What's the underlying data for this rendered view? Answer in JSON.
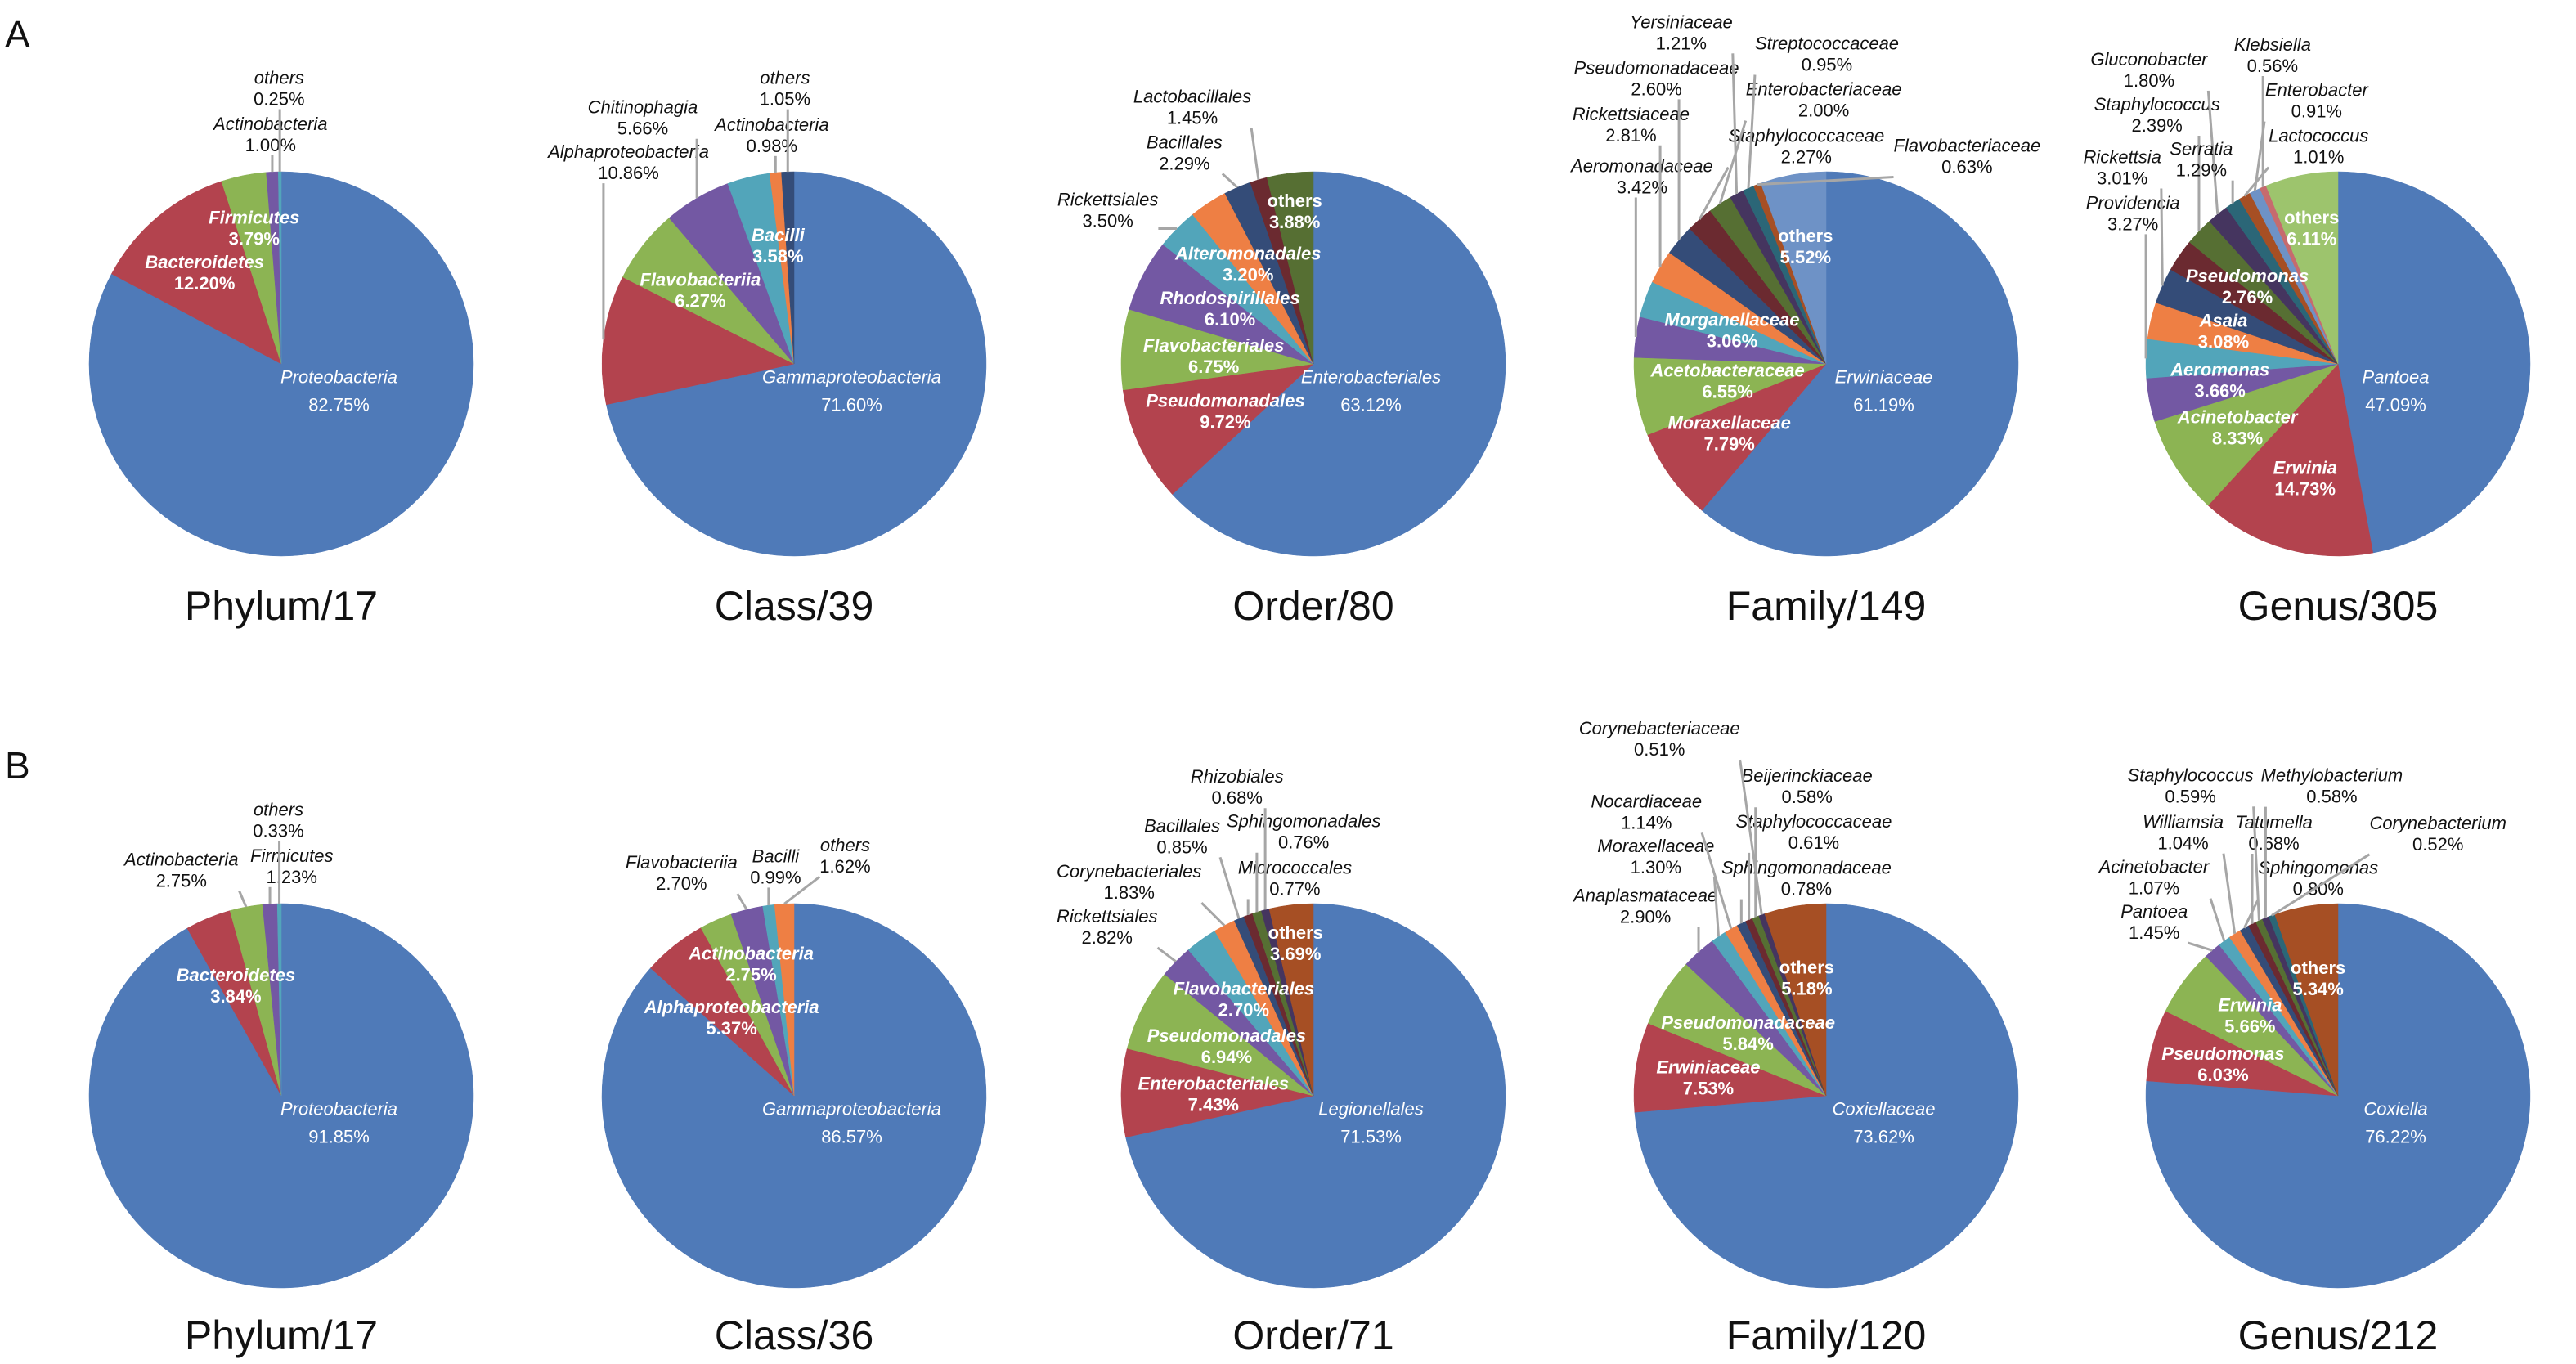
{
  "panels": [
    {
      "label": "A"
    },
    {
      "label": "B"
    }
  ],
  "palette": [
    "#4F7AB8",
    "#B3434E",
    "#8CB453",
    "#7358A3",
    "#52A5BA",
    "#EE7F44",
    "#344C78",
    "#6B2A30",
    "#566F33",
    "#45355F",
    "#2B6677",
    "#A64F24",
    "#6E92C6",
    "#C66B6E",
    "#9DC46D"
  ],
  "chart_data": [
    {
      "type": "pie",
      "panel": "A",
      "title": "Phylum/17",
      "slices": [
        {
          "label": "Proteobacteria",
          "value": 82.75
        },
        {
          "label": "Bacteroidetes",
          "value": 12.2
        },
        {
          "label": "Firmicutes",
          "value": 3.79
        },
        {
          "label": "Actinobacteria",
          "value": 1.0
        },
        {
          "label": "others",
          "value": 0.25
        }
      ]
    },
    {
      "type": "pie",
      "panel": "A",
      "title": "Class/39",
      "slices": [
        {
          "label": "Gammaproteobacteria",
          "value": 71.6
        },
        {
          "label": "Alphaproteobacteria",
          "value": 10.86
        },
        {
          "label": "Flavobacteriia",
          "value": 6.27
        },
        {
          "label": "Chitinophagia",
          "value": 5.66
        },
        {
          "label": "Bacilli",
          "value": 3.58
        },
        {
          "label": "Actinobacteria",
          "value": 0.98
        },
        {
          "label": "others",
          "value": 1.05
        }
      ]
    },
    {
      "type": "pie",
      "panel": "A",
      "title": "Order/80",
      "slices": [
        {
          "label": "Enterobacteriales",
          "value": 63.12
        },
        {
          "label": "Pseudomonadales",
          "value": 9.72
        },
        {
          "label": "Flavobacteriales",
          "value": 6.75
        },
        {
          "label": "Rhodospirillales",
          "value": 6.1
        },
        {
          "label": "Rickettsiales",
          "value": 3.5
        },
        {
          "label": "Alteromonadales",
          "value": 3.2
        },
        {
          "label": "Bacillales",
          "value": 2.29
        },
        {
          "label": "Lactobacillales",
          "value": 1.45
        },
        {
          "label": "others",
          "value": 3.88
        }
      ]
    },
    {
      "type": "pie",
      "panel": "A",
      "title": "Family/149",
      "slices": [
        {
          "label": "Erwiniaceae",
          "value": 61.19
        },
        {
          "label": "Moraxellaceae",
          "value": 7.79
        },
        {
          "label": "Acetobacteraceae",
          "value": 6.55
        },
        {
          "label": "Aeromonadaceae",
          "value": 3.42
        },
        {
          "label": "Morganellaceae",
          "value": 3.06
        },
        {
          "label": "Rickettsiaceae",
          "value": 2.81
        },
        {
          "label": "Pseudomonadaceae",
          "value": 2.6
        },
        {
          "label": "Staphylococcaceae",
          "value": 2.27
        },
        {
          "label": "Enterobacteriaceae",
          "value": 2.0
        },
        {
          "label": "Yersiniaceae",
          "value": 1.21
        },
        {
          "label": "Streptococcaceae",
          "value": 0.95
        },
        {
          "label": "Flavobacteriaceae",
          "value": 0.63
        },
        {
          "label": "others",
          "value": 5.52
        }
      ]
    },
    {
      "type": "pie",
      "panel": "A",
      "title": "Genus/305",
      "slices": [
        {
          "label": "Pantoea",
          "value": 47.09
        },
        {
          "label": "Erwinia",
          "value": 14.73
        },
        {
          "label": "Acinetobacter",
          "value": 8.33
        },
        {
          "label": "Aeromonas",
          "value": 3.66
        },
        {
          "label": "Providencia",
          "value": 3.27
        },
        {
          "label": "Asaia",
          "value": 3.08
        },
        {
          "label": "Rickettsia",
          "value": 3.01
        },
        {
          "label": "Pseudomonas",
          "value": 2.76
        },
        {
          "label": "Staphylococcus",
          "value": 2.39
        },
        {
          "label": "Gluconobacter",
          "value": 1.8
        },
        {
          "label": "Serratia",
          "value": 1.29
        },
        {
          "label": "Lactococcus",
          "value": 1.01
        },
        {
          "label": "Enterobacter",
          "value": 0.91
        },
        {
          "label": "Klebsiella",
          "value": 0.56
        },
        {
          "label": "others",
          "value": 6.11
        }
      ]
    },
    {
      "type": "pie",
      "panel": "B",
      "title": "Phylum/17",
      "slices": [
        {
          "label": "Proteobacteria",
          "value": 91.85
        },
        {
          "label": "Bacteroidetes",
          "value": 3.84
        },
        {
          "label": "Actinobacteria",
          "value": 2.75
        },
        {
          "label": "Firmicutes",
          "value": 1.23
        },
        {
          "label": "others",
          "value": 0.33
        }
      ]
    },
    {
      "type": "pie",
      "panel": "B",
      "title": "Class/36",
      "slices": [
        {
          "label": "Gammaproteobacteria",
          "value": 86.57
        },
        {
          "label": "Alphaproteobacteria",
          "value": 5.37
        },
        {
          "label": "Actinobacteria",
          "value": 2.75
        },
        {
          "label": "Flavobacteriia",
          "value": 2.7
        },
        {
          "label": "Bacilli",
          "value": 0.99
        },
        {
          "label": "others",
          "value": 1.62
        }
      ]
    },
    {
      "type": "pie",
      "panel": "B",
      "title": "Order/71",
      "slices": [
        {
          "label": "Legionellales",
          "value": 71.53
        },
        {
          "label": "Enterobacteriales",
          "value": 7.43
        },
        {
          "label": "Pseudomonadales",
          "value": 6.94
        },
        {
          "label": "Rickettsiales",
          "value": 2.82
        },
        {
          "label": "Flavobacteriales",
          "value": 2.7
        },
        {
          "label": "Corynebacteriales",
          "value": 1.83
        },
        {
          "label": "Bacillales",
          "value": 0.85
        },
        {
          "label": "Micrococcales",
          "value": 0.77
        },
        {
          "label": "Sphingomonadales",
          "value": 0.76
        },
        {
          "label": "Rhizobiales",
          "value": 0.68
        },
        {
          "label": "others",
          "value": 3.69,
          "color": "#A64F24"
        }
      ]
    },
    {
      "type": "pie",
      "panel": "B",
      "title": "Family/120",
      "slices": [
        {
          "label": "Coxiellaceae",
          "value": 73.62
        },
        {
          "label": "Erwiniaceae",
          "value": 7.53
        },
        {
          "label": "Pseudomonadaceae",
          "value": 5.84
        },
        {
          "label": "Anaplasmataceae",
          "value": 2.9
        },
        {
          "label": "Moraxellaceae",
          "value": 1.3
        },
        {
          "label": "Nocardiaceae",
          "value": 1.14
        },
        {
          "label": "Sphingomonadaceae",
          "value": 0.78
        },
        {
          "label": "Staphylococcaceae",
          "value": 0.61
        },
        {
          "label": "Beijerinckiaceae",
          "value": 0.58
        },
        {
          "label": "Corynebacteriaceae",
          "value": 0.51
        },
        {
          "label": "others",
          "value": 5.18,
          "color": "#A64F24"
        }
      ]
    },
    {
      "type": "pie",
      "panel": "B",
      "title": "Genus/212",
      "slices": [
        {
          "label": "Coxiella",
          "value": 76.22
        },
        {
          "label": "Pseudomonas",
          "value": 6.03
        },
        {
          "label": "Erwinia",
          "value": 5.66
        },
        {
          "label": "Pantoea",
          "value": 1.45
        },
        {
          "label": "Acinetobacter",
          "value": 1.07
        },
        {
          "label": "Williamsia",
          "value": 1.04
        },
        {
          "label": "Sphingomonas",
          "value": 0.8
        },
        {
          "label": "Tatumella",
          "value": 0.68
        },
        {
          "label": "Staphylococcus",
          "value": 0.59
        },
        {
          "label": "Methylobacterium",
          "value": 0.58
        },
        {
          "label": "Corynebacterium",
          "value": 0.52
        },
        {
          "label": "others",
          "value": 5.34
        }
      ]
    }
  ]
}
